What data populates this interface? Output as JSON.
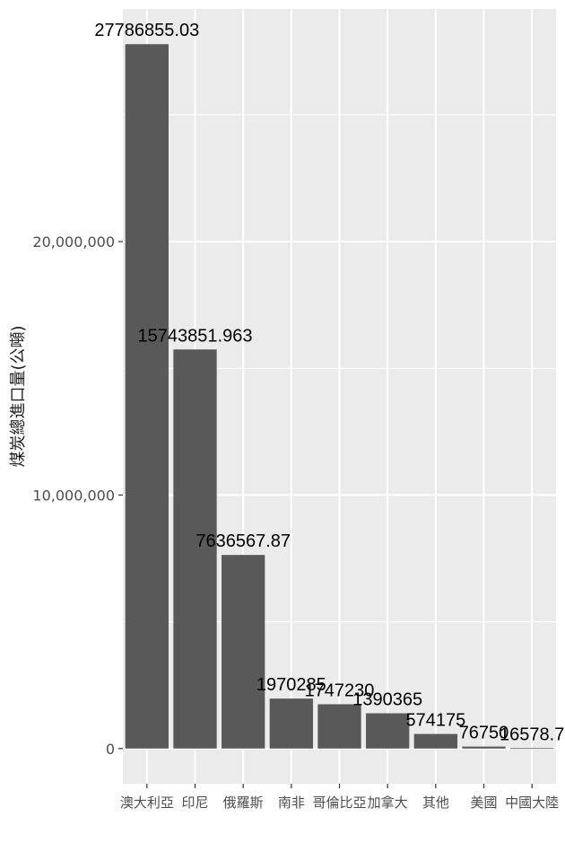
{
  "chart_data": {
    "type": "bar",
    "title": "",
    "xlabel": "",
    "ylabel": "煤炭總進口量(公噸)",
    "categories": [
      "澳大利亞",
      "印尼",
      "俄羅斯",
      "南非",
      "哥倫比亞",
      "加拿大",
      "其他",
      "美國",
      "中國大陸"
    ],
    "values": [
      27786855.03,
      15743851.963,
      7636567.87,
      1970285,
      1747230,
      1390365,
      574175,
      76750,
      16578.7
    ],
    "value_labels": [
      "27786855.03",
      "15743851.963",
      "7636567.87",
      "1970285",
      "1747230",
      "1390365",
      "574175",
      "76750",
      "16578.7"
    ],
    "y_ticks": [
      0,
      10000000,
      20000000
    ],
    "y_tick_labels": [
      "0",
      "10,000,000",
      "20,000,000"
    ],
    "ylim": [
      -1389343,
      29176198
    ],
    "grid": true,
    "legend": "none",
    "colors": {
      "panel": "#ebebeb",
      "grid": "#ffffff",
      "bar": "#595959",
      "text": "#000000",
      "tick": "#4d4d4d"
    }
  }
}
